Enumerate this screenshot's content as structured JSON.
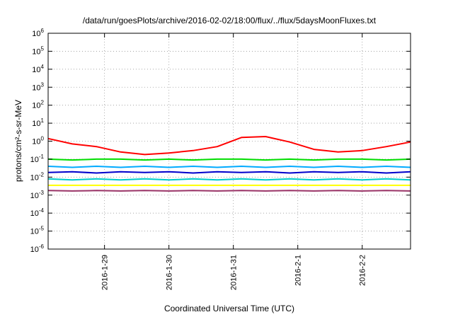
{
  "chart_data": {
    "type": "line",
    "title": "/data/run/goesPlots/archive/2016-02-02/18:00/flux/../flux/5daysMoonFluxes.txt",
    "xlabel": "Coordinated Universal Time (UTC)",
    "ylabel": "protons/cm²-s-sr-MeV",
    "y_scale": "log",
    "ylim": [
      1e-06,
      1000000
    ],
    "y_ticks": [
      {
        "exp": "-6"
      },
      {
        "exp": "-5"
      },
      {
        "exp": "-4"
      },
      {
        "exp": "-3"
      },
      {
        "exp": "-2"
      },
      {
        "exp": "-1"
      },
      {
        "exp": "0"
      },
      {
        "exp": "1"
      },
      {
        "exp": "2"
      },
      {
        "exp": "3"
      },
      {
        "exp": "4"
      },
      {
        "exp": "5"
      },
      {
        "exp": "6"
      }
    ],
    "y_tick_base": "10",
    "xlim": [
      "2016-01-28T03:00",
      "2016-02-02T18:00"
    ],
    "x_ticks": [
      "2016-1-29",
      "2016-1-30",
      "2016-1-31",
      "2016-2-1",
      "2016-2-2"
    ],
    "grid": true,
    "series": [
      {
        "color": "#ff0000",
        "x": [
          "2016-01-28T03:00",
          "2016-01-28T12:00",
          "2016-01-28T21:00",
          "2016-01-29T06:00",
          "2016-01-29T15:00",
          "2016-01-30T00:00",
          "2016-01-30T09:00",
          "2016-01-30T18:00",
          "2016-01-31T03:00",
          "2016-01-31T12:00",
          "2016-01-31T21:00",
          "2016-02-01T06:00",
          "2016-02-01T15:00",
          "2016-02-02T00:00",
          "2016-02-02T09:00",
          "2016-02-02T18:00"
        ],
        "values": [
          1.4,
          0.7,
          0.5,
          0.25,
          0.18,
          0.22,
          0.3,
          0.5,
          1.6,
          1.8,
          0.9,
          0.35,
          0.25,
          0.3,
          0.5,
          0.9
        ]
      },
      {
        "color": "#00dd00",
        "x": [
          "2016-01-28T03:00",
          "2016-01-28T12:00",
          "2016-01-28T21:00",
          "2016-01-29T06:00",
          "2016-01-29T15:00",
          "2016-01-30T00:00",
          "2016-01-30T09:00",
          "2016-01-30T18:00",
          "2016-01-31T03:00",
          "2016-01-31T12:00",
          "2016-01-31T21:00",
          "2016-02-01T06:00",
          "2016-02-01T15:00",
          "2016-02-02T00:00",
          "2016-02-02T09:00",
          "2016-02-02T18:00"
        ],
        "values": [
          0.1,
          0.09,
          0.1,
          0.1,
          0.09,
          0.1,
          0.09,
          0.1,
          0.1,
          0.09,
          0.1,
          0.09,
          0.1,
          0.1,
          0.09,
          0.1
        ]
      },
      {
        "color": "#00aaff",
        "x": [
          "2016-01-28T03:00",
          "2016-01-28T12:00",
          "2016-01-28T21:00",
          "2016-01-29T06:00",
          "2016-01-29T15:00",
          "2016-01-30T00:00",
          "2016-01-30T09:00",
          "2016-01-30T18:00",
          "2016-01-31T03:00",
          "2016-01-31T12:00",
          "2016-01-31T21:00",
          "2016-02-01T06:00",
          "2016-02-01T15:00",
          "2016-02-02T00:00",
          "2016-02-02T09:00",
          "2016-02-02T18:00"
        ],
        "values": [
          0.04,
          0.035,
          0.04,
          0.035,
          0.04,
          0.035,
          0.04,
          0.035,
          0.04,
          0.035,
          0.04,
          0.035,
          0.04,
          0.035,
          0.04,
          0.035
        ]
      },
      {
        "color": "#0000cc",
        "x": [
          "2016-01-28T03:00",
          "2016-01-28T12:00",
          "2016-01-28T21:00",
          "2016-01-29T06:00",
          "2016-01-29T15:00",
          "2016-01-30T00:00",
          "2016-01-30T09:00",
          "2016-01-30T18:00",
          "2016-01-31T03:00",
          "2016-01-31T12:00",
          "2016-01-31T21:00",
          "2016-02-01T06:00",
          "2016-02-01T15:00",
          "2016-02-02T00:00",
          "2016-02-02T09:00",
          "2016-02-02T18:00"
        ],
        "values": [
          0.018,
          0.02,
          0.017,
          0.02,
          0.018,
          0.02,
          0.017,
          0.02,
          0.018,
          0.02,
          0.017,
          0.02,
          0.018,
          0.02,
          0.017,
          0.02
        ]
      },
      {
        "color": "#00cccc",
        "x": [
          "2016-01-28T03:00",
          "2016-01-28T12:00",
          "2016-01-28T21:00",
          "2016-01-29T06:00",
          "2016-01-29T15:00",
          "2016-01-30T00:00",
          "2016-01-30T09:00",
          "2016-01-30T18:00",
          "2016-01-31T03:00",
          "2016-01-31T12:00",
          "2016-01-31T21:00",
          "2016-02-01T06:00",
          "2016-02-01T15:00",
          "2016-02-02T00:00",
          "2016-02-02T09:00",
          "2016-02-02T18:00"
        ],
        "values": [
          0.008,
          0.007,
          0.008,
          0.007,
          0.008,
          0.007,
          0.008,
          0.007,
          0.008,
          0.007,
          0.008,
          0.007,
          0.008,
          0.007,
          0.008,
          0.007
        ]
      },
      {
        "color": "#ffff00",
        "x": [
          "2016-01-28T03:00",
          "2016-01-28T12:00",
          "2016-01-28T21:00",
          "2016-01-29T06:00",
          "2016-01-29T15:00",
          "2016-01-30T00:00",
          "2016-01-30T09:00",
          "2016-01-30T18:00",
          "2016-01-31T03:00",
          "2016-01-31T12:00",
          "2016-01-31T21:00",
          "2016-02-01T06:00",
          "2016-02-01T15:00",
          "2016-02-02T00:00",
          "2016-02-02T09:00",
          "2016-02-02T18:00"
        ],
        "values": [
          0.0035,
          0.0035,
          0.0035,
          0.0035,
          0.0035,
          0.0035,
          0.0035,
          0.0035,
          0.0035,
          0.0035,
          0.0035,
          0.0035,
          0.0035,
          0.0035,
          0.0035,
          0.0035
        ]
      },
      {
        "color": "#993366",
        "x": [
          "2016-01-28T03:00",
          "2016-01-28T12:00",
          "2016-01-28T21:00",
          "2016-01-29T06:00",
          "2016-01-29T15:00",
          "2016-01-30T00:00",
          "2016-01-30T09:00",
          "2016-01-30T18:00",
          "2016-01-31T03:00",
          "2016-01-31T12:00",
          "2016-01-31T21:00",
          "2016-02-01T06:00",
          "2016-02-01T15:00",
          "2016-02-02T00:00",
          "2016-02-02T09:00",
          "2016-02-02T18:00"
        ],
        "values": [
          0.0018,
          0.0017,
          0.0018,
          0.0017,
          0.0018,
          0.0017,
          0.0018,
          0.0017,
          0.0018,
          0.0017,
          0.0018,
          0.0017,
          0.0018,
          0.0017,
          0.0018,
          0.0017
        ]
      }
    ]
  }
}
